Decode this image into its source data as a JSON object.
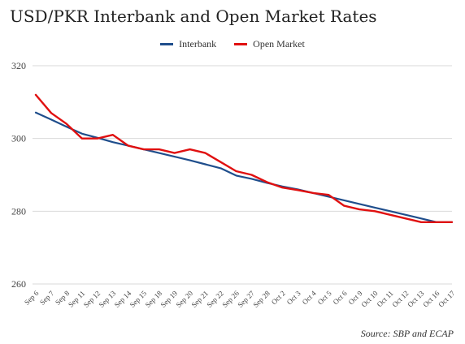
{
  "chart_data": {
    "type": "line",
    "title": "USD/PKR Interbank and Open Market Rates",
    "source": "Source: SBP and ECAP",
    "xlabel": "",
    "ylabel": "",
    "ylim": [
      260,
      320
    ],
    "yticks": [
      260,
      280,
      300,
      320
    ],
    "grid": true,
    "legend": "top-center",
    "categories": [
      "Sep 6",
      "Sep 7",
      "Sep 8",
      "Sep 11",
      "Sep 12",
      "Sep 13",
      "Sep 14",
      "Sep 15",
      "Sep 18",
      "Sep 19",
      "Sep 20",
      "Sep 21",
      "Sep 22",
      "Sep 26",
      "Sep 27",
      "Sep 28",
      "Oct 2",
      "Oct 3",
      "Oct 4",
      "Oct 5",
      "Oct 6",
      "Oct 9",
      "Oct 10",
      "Oct 11",
      "Oct 12",
      "Oct 13",
      "Oct 16",
      "Oct 17"
    ],
    "series": [
      {
        "name": "Interbank",
        "color": "#1f4e8c",
        "values": [
          307.1,
          305.2,
          303.2,
          301.3,
          300.2,
          299.0,
          298.0,
          297.0,
          296.0,
          295.0,
          294.0,
          292.9,
          291.8,
          289.8,
          288.9,
          287.8,
          286.8,
          286.0,
          285.0,
          284.0,
          283.0,
          282.0,
          281.0,
          280.0,
          279.0,
          278.0,
          277.0,
          277.0
        ]
      },
      {
        "name": "Open Market",
        "color": "#e01010",
        "values": [
          312.0,
          307.0,
          304.0,
          300.0,
          300.0,
          301.0,
          298.0,
          297.0,
          297.0,
          296.0,
          297.0,
          296.0,
          293.5,
          291.0,
          290.0,
          288.0,
          286.5,
          285.8,
          285.0,
          284.5,
          281.5,
          280.5,
          280.0,
          279.0,
          278.0,
          277.0,
          277.0,
          277.0
        ]
      }
    ]
  }
}
